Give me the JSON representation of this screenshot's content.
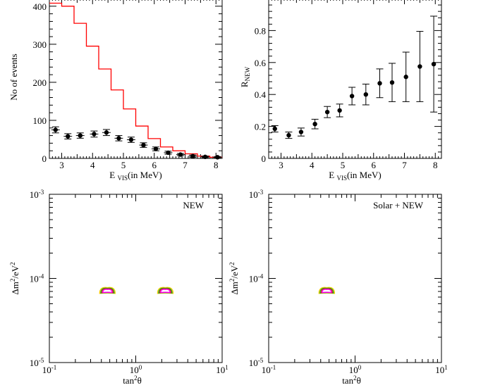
{
  "chart_data": [
    {
      "type": "scatter",
      "panel": "top-left",
      "xlabel": "E",
      "xlabel_sub": "VIS",
      "xlabel_tail": "(in MeV)",
      "ylabel": "No of events",
      "xlim": [
        2.6,
        8.2
      ],
      "ylim": [
        0,
        420
      ],
      "xticks": [
        3,
        4,
        5,
        6,
        7,
        8
      ],
      "yticks": [
        0,
        100,
        200,
        300,
        400
      ],
      "series": [
        {
          "kind": "histogram",
          "color": "#ff0000",
          "edges": [
            2.6,
            3.0,
            3.4,
            3.8,
            4.2,
            4.6,
            5.0,
            5.4,
            5.8,
            6.2,
            6.6,
            7.0,
            7.4,
            7.8,
            8.2
          ],
          "values": [
            408,
            400,
            355,
            295,
            235,
            180,
            130,
            85,
            52,
            30,
            20,
            12,
            6,
            3
          ]
        },
        {
          "kind": "points",
          "color": "#000000",
          "x": [
            2.8,
            3.2,
            3.6,
            4.05,
            4.45,
            4.85,
            5.25,
            5.65,
            6.05,
            6.45,
            6.85,
            7.25,
            7.65,
            8.05
          ],
          "y": [
            75,
            58,
            60,
            64,
            68,
            53,
            49,
            35,
            25,
            15,
            10,
            6,
            4,
            3
          ],
          "err": [
            8,
            7,
            7,
            8,
            8,
            7,
            7,
            6,
            5,
            4,
            3,
            3,
            2,
            2
          ]
        }
      ]
    },
    {
      "type": "scatter",
      "panel": "top-right",
      "xlabel": "E",
      "xlabel_sub": "VIS",
      "xlabel_tail": "(in MeV)",
      "ylabel": "R",
      "ylabel_sub": "NEW",
      "xlim": [
        2.6,
        8.2
      ],
      "ylim": [
        0,
        1.0
      ],
      "xticks": [
        3,
        4,
        5,
        6,
        7,
        8
      ],
      "yticks": [
        0,
        0.2,
        0.4,
        0.6,
        0.8
      ],
      "ytick_labels": [
        "0",
        "0.2",
        "0.4",
        "0.6",
        "0.8"
      ],
      "series": [
        {
          "kind": "points",
          "color": "#000000",
          "x": [
            2.8,
            3.25,
            3.65,
            4.1,
            4.5,
            4.9,
            5.3,
            5.75,
            6.2,
            6.6,
            7.05,
            7.5,
            7.95
          ],
          "y": [
            0.185,
            0.145,
            0.165,
            0.215,
            0.29,
            0.3,
            0.39,
            0.4,
            0.47,
            0.475,
            0.51,
            0.575,
            0.59
          ],
          "err": [
            0.02,
            0.02,
            0.025,
            0.03,
            0.035,
            0.04,
            0.055,
            0.065,
            0.09,
            0.12,
            0.155,
            0.22,
            0.3
          ]
        }
      ]
    },
    {
      "type": "scatter",
      "panel": "bottom-left",
      "annotation": "NEW",
      "xlabel": "tan",
      "xlabel_sup": "2",
      "xlabel_tail": "θ",
      "ylabel": "Δm",
      "ylabel_sup": "2",
      "ylabel_tail": "/eV",
      "ylabel_sup2": "2",
      "xscale": "log",
      "yscale": "log",
      "xlim": [
        0.1,
        10
      ],
      "ylim": [
        1e-05,
        0.001
      ],
      "xtick_labels": [
        {
          "base": "10",
          "exp": "-1"
        },
        {
          "base": "10",
          "exp": "0"
        },
        {
          "base": "10",
          "exp": "1"
        }
      ],
      "ytick_labels": [
        {
          "base": "10",
          "exp": "-5"
        },
        {
          "base": "10",
          "exp": "-4"
        },
        {
          "base": "10",
          "exp": "-3"
        }
      ],
      "contours": [
        {
          "x": 0.47,
          "y": 7e-05,
          "colors": [
            "#ffcc00",
            "#22aa22",
            "#cc2222",
            "#ff00ff"
          ]
        },
        {
          "x": 2.2,
          "y": 7e-05,
          "colors": [
            "#ffcc00",
            "#22aa22",
            "#cc2222",
            "#ff00ff"
          ]
        }
      ]
    },
    {
      "type": "scatter",
      "panel": "bottom-right",
      "annotation": "Solar + NEW",
      "xlabel": "tan",
      "xlabel_sup": "2",
      "xlabel_tail": "θ",
      "ylabel": "Δm",
      "ylabel_sup": "2",
      "ylabel_tail": "/eV",
      "ylabel_sup2": "2",
      "xscale": "log",
      "yscale": "log",
      "xlim": [
        0.1,
        10
      ],
      "ylim": [
        1e-05,
        0.001
      ],
      "xtick_labels": [
        {
          "base": "10",
          "exp": "-1"
        },
        {
          "base": "10",
          "exp": "0"
        },
        {
          "base": "10",
          "exp": "1"
        }
      ],
      "ytick_labels": [
        {
          "base": "10",
          "exp": "-5"
        },
        {
          "base": "10",
          "exp": "-4"
        },
        {
          "base": "10",
          "exp": "-3"
        }
      ],
      "contours": [
        {
          "x": 0.47,
          "y": 7e-05,
          "colors": [
            "#ffcc00",
            "#22aa22",
            "#cc2222",
            "#ff00ff"
          ]
        }
      ]
    }
  ]
}
